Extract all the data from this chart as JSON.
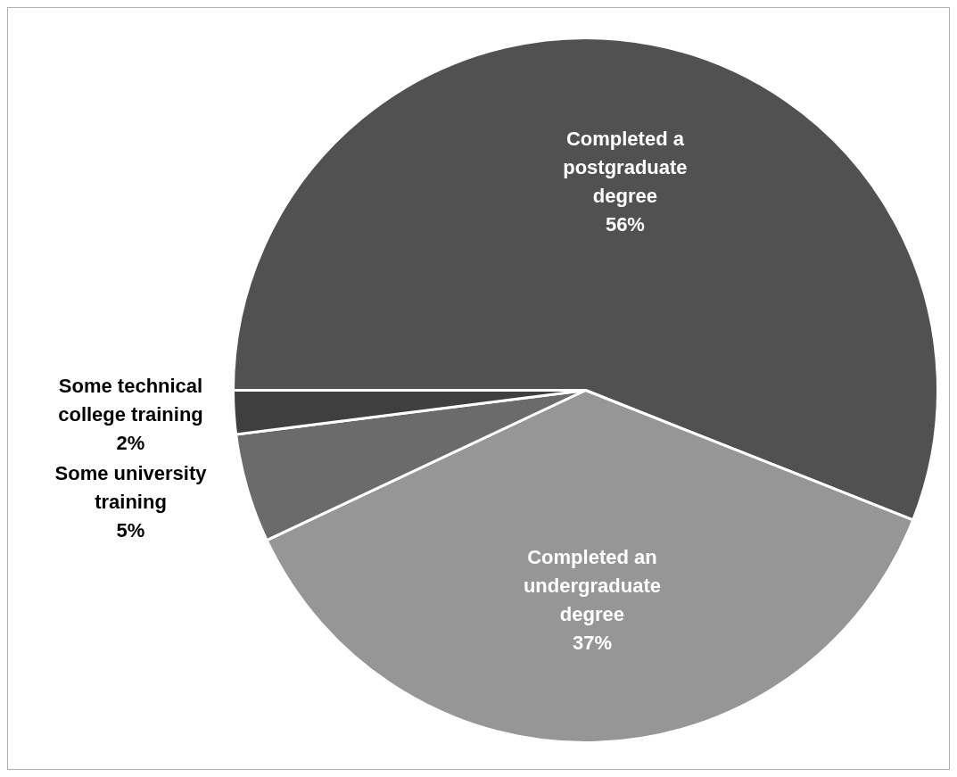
{
  "chart_data": {
    "type": "pie",
    "categories": [
      "Completed a postgraduate degree",
      "Completed an undergraduate degree",
      "Some university training",
      "Some technical college training"
    ],
    "values": [
      56,
      37,
      5,
      2
    ],
    "colors": [
      "#515151",
      "#969696",
      "#6b6b6b",
      "#3f3f3f"
    ],
    "value_labels": [
      "56%",
      "37%",
      "5%",
      "2%"
    ],
    "legend": false
  }
}
